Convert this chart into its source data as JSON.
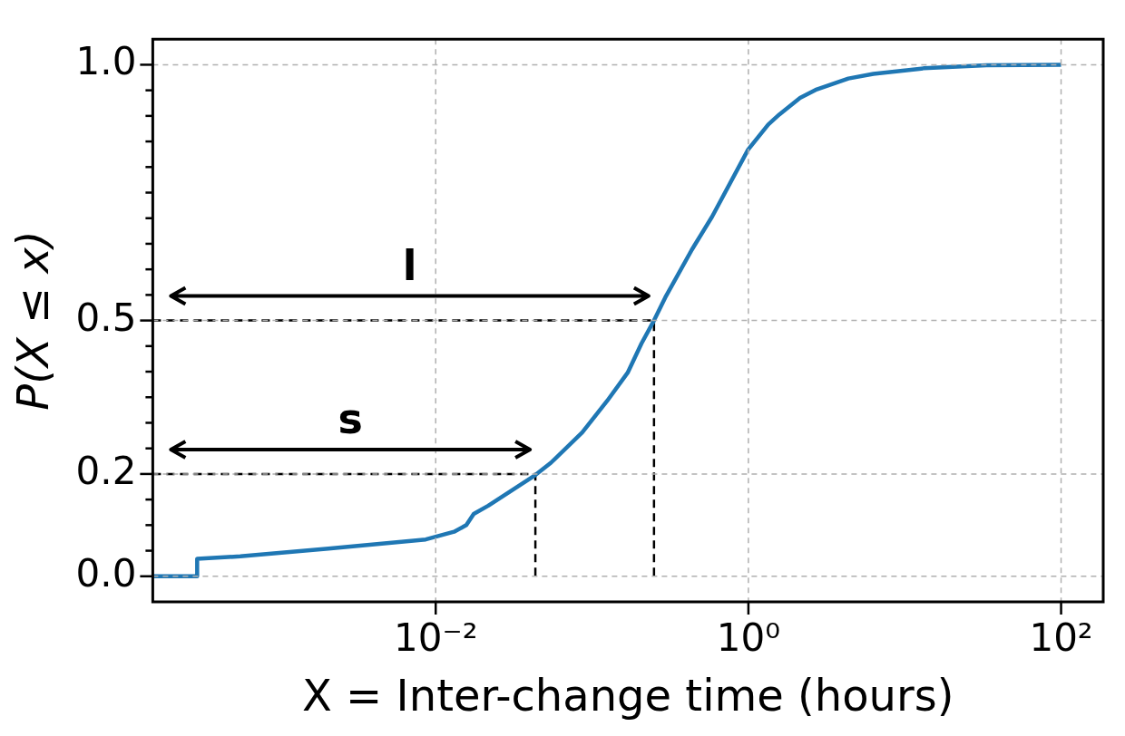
{
  "chart_data": {
    "type": "line",
    "xlabel": "X = Inter-change time (hours)",
    "ylabel": "P(X ≤ x)",
    "log": "x",
    "grid": true,
    "marker": "none",
    "xlim": [
      0.000155,
      186
    ],
    "ylim": [
      -0.05,
      1.05
    ],
    "xticks": [
      {
        "value": 0.01,
        "label": "10⁻²"
      },
      {
        "value": 1,
        "label": "10⁰"
      },
      {
        "value": 100,
        "label": "10²"
      }
    ],
    "yticks": [
      {
        "value": 0,
        "label": "0.0"
      },
      {
        "value": 0.05,
        "label": null
      },
      {
        "value": 0.1,
        "label": null
      },
      {
        "value": 0.15,
        "label": null
      },
      {
        "value": 0.2,
        "label": "0.2"
      },
      {
        "value": 0.25,
        "label": null
      },
      {
        "value": 0.3,
        "label": null
      },
      {
        "value": 0.35,
        "label": null
      },
      {
        "value": 0.4,
        "label": null
      },
      {
        "value": 0.45,
        "label": null
      },
      {
        "value": 0.5,
        "label": "0.5"
      },
      {
        "value": 0.55,
        "label": null
      },
      {
        "value": 0.6,
        "label": null
      },
      {
        "value": 0.65,
        "label": null
      },
      {
        "value": 0.7,
        "label": null
      },
      {
        "value": 0.75,
        "label": null
      },
      {
        "value": 0.8,
        "label": null
      },
      {
        "value": 0.85,
        "label": null
      },
      {
        "value": 0.9,
        "label": null
      },
      {
        "value": 0.95,
        "label": null
      },
      {
        "value": 1,
        "label": "1.0"
      }
    ],
    "series": [
      {
        "color": "#1f77b4",
        "line_style": "solid",
        "x": [
          0.000155,
          0.000298,
          0.000298,
          0.000562,
          0.00206,
          0.00863,
          0.0131,
          0.0157,
          0.0175,
          0.0217,
          0.0434,
          0.0546,
          0.0865,
          0.125,
          0.169,
          0.207,
          0.249,
          0.294,
          0.434,
          0.586,
          0.995,
          1.34,
          1.58,
          2.14,
          2.74,
          4.36,
          6.3,
          13.2,
          33.3,
          100
        ],
        "values": [
          0,
          0,
          0.034,
          0.039,
          0.054,
          0.072,
          0.087,
          0.1,
          0.122,
          0.138,
          0.198,
          0.222,
          0.281,
          0.343,
          0.398,
          0.455,
          0.5,
          0.545,
          0.638,
          0.703,
          0.834,
          0.883,
          0.903,
          0.935,
          0.952,
          0.973,
          0.982,
          0.993,
          0.999,
          1
        ]
      },
      {
        "color": "#000000",
        "line_style": "dashed",
        "x": [
          0.000155,
          0.249,
          0.249
        ],
        "values": [
          0.5,
          0.5,
          0
        ]
      },
      {
        "color": "#000000",
        "line_style": "dashed",
        "x": [
          0.000155,
          0.0434,
          0.0434
        ],
        "values": [
          0.2,
          0.2,
          0
        ]
      }
    ],
    "annotations": [
      "l",
      "s"
    ]
  }
}
